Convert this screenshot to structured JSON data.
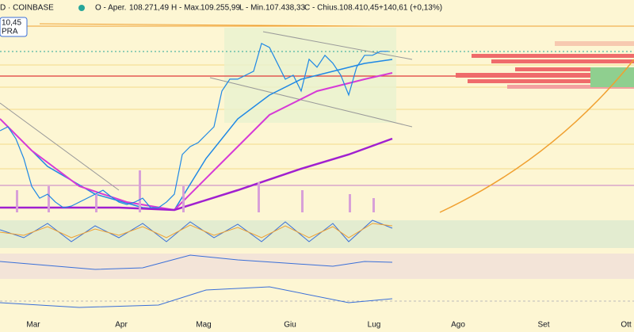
{
  "header": {
    "symbol": "D · COINBASE",
    "open_label": "O - Aper.",
    "open": "108.271,49",
    "high_label": "H - Max.",
    "high": "109.255,99",
    "low_label": "L - Min.",
    "low": "107.438,33",
    "close_label": "C - Chius.",
    "close": "108.410,45",
    "change": "+140,61 (+0,13%)"
  },
  "price_tag": {
    "price": "10,45",
    "side": "PRA"
  },
  "x_axis": {
    "labels": [
      "Mar",
      "Apr",
      "Mag",
      "Giu",
      "Lug",
      "Ago",
      "Set",
      "Ott"
    ]
  },
  "chart_data": {
    "type": "line",
    "color": "#1e88e5",
    "ylim": [
      82800,
      116500
    ],
    "values": [
      95910,
      96535,
      94660,
      91535,
      87160,
      85285,
      85910,
      84660,
      83785,
      84035,
      84660,
      85285,
      85910,
      86535,
      85535,
      84660,
      84285,
      84660,
      85285,
      83785,
      83785,
      84660,
      85910,
      92160,
      93410,
      94035,
      95285,
      96535,
      102160,
      104035,
      104035,
      104660,
      105285,
      109660,
      109035,
      106535,
      104035,
      104660,
      102160,
      107160,
      105910,
      107785,
      106535,
      104660,
      101535,
      105910,
      107785,
      107785,
      108410,
      108410
    ]
  }
}
